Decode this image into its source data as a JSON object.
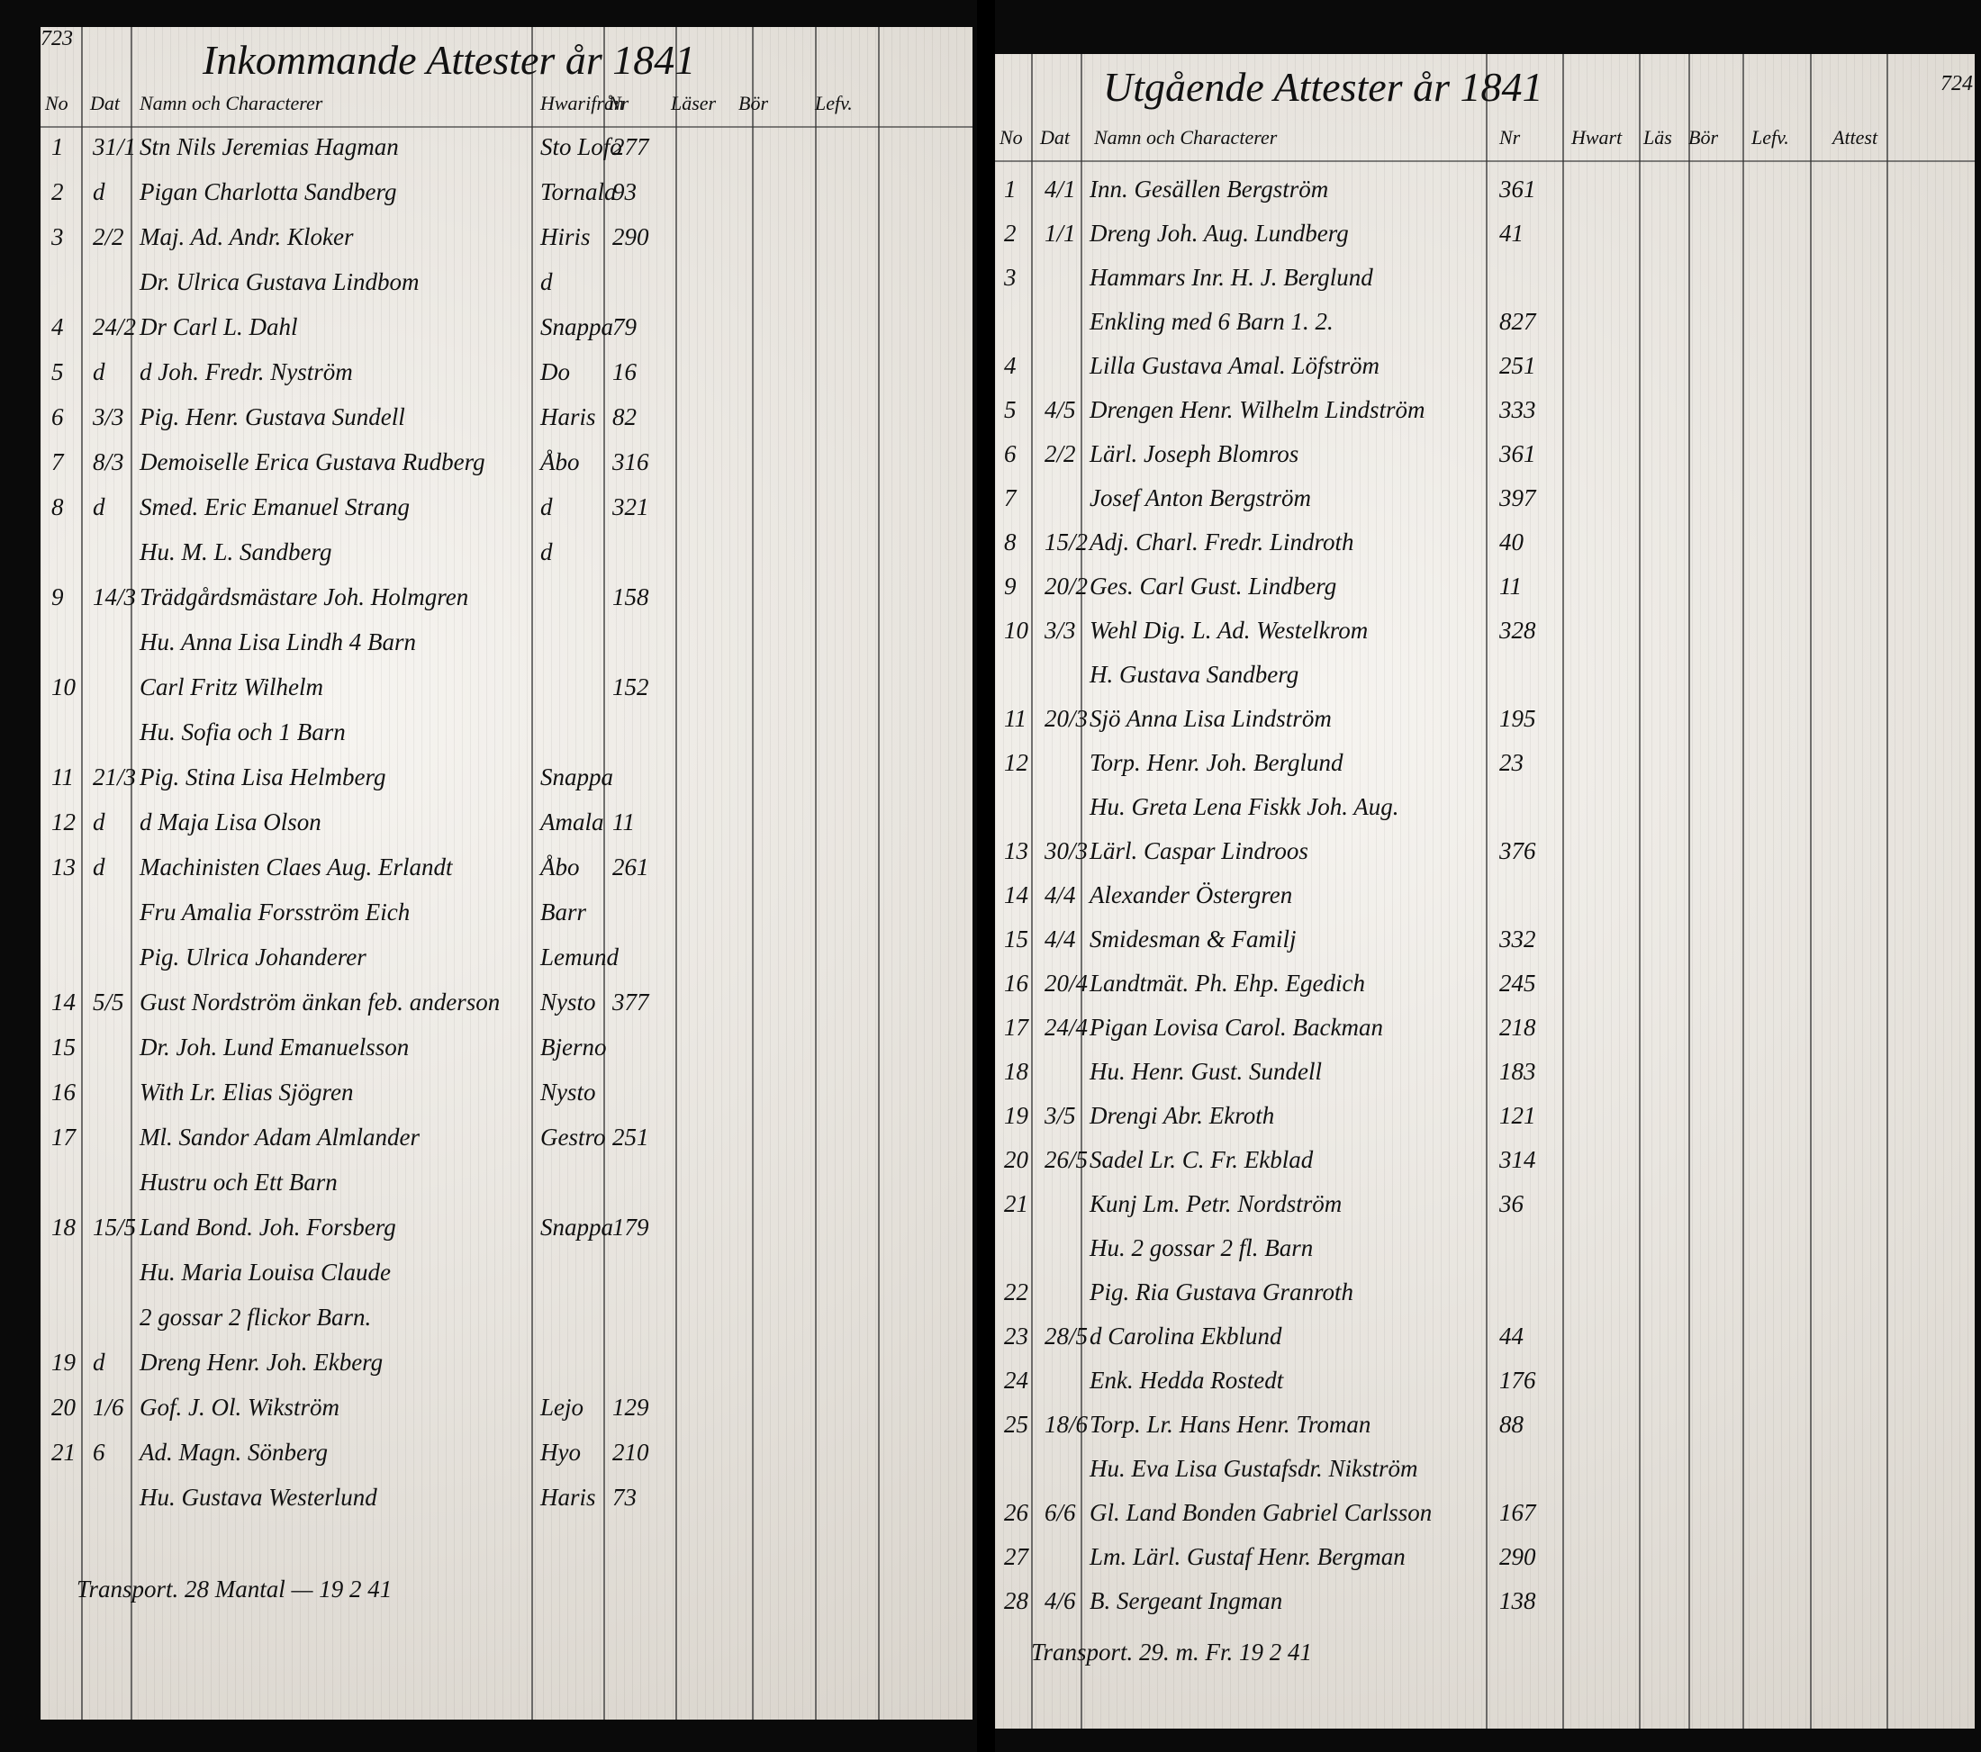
{
  "pages": [
    {
      "page_number": "723",
      "title": "Inkommande Attester år 1841",
      "headers": [
        "No",
        "Dat",
        "Namn och Characterer",
        "Hwarifrån",
        "Nr",
        "Läser",
        "Bör",
        "Lefv."
      ],
      "rows": [
        {
          "no": "1",
          "date": "31/1",
          "name": "Stn Nils Jeremias Hagman",
          "from": "Sto Lofo",
          "nr": "277"
        },
        {
          "no": "2",
          "date": "d",
          "name": "Pigan Charlotta Sandberg",
          "from": "Tornala",
          "nr": "93"
        },
        {
          "no": "3",
          "date": "2/2",
          "name": "Maj. Ad. Andr. Kloker",
          "from": "Hiris",
          "nr": "290"
        },
        {
          "name": "Dr. Ulrica Gustava Lindbom",
          "from": "d"
        },
        {
          "no": "4",
          "date": "24/2",
          "name": "Dr Carl L. Dahl",
          "from": "Snappa",
          "nr": "79"
        },
        {
          "no": "5",
          "date": "d",
          "name": "d Joh. Fredr. Nyström",
          "from": "Do",
          "nr": "16"
        },
        {
          "no": "6",
          "date": "3/3",
          "name": "Pig. Henr. Gustava Sundell",
          "from": "Haris",
          "nr": "82"
        },
        {
          "no": "7",
          "date": "8/3",
          "name": "Demoiselle Erica Gustava Rudberg",
          "from": "Åbo",
          "nr": "316"
        },
        {
          "no": "8",
          "date": "d",
          "name": "Smed. Eric Emanuel Strang",
          "from": "d",
          "nr": "321"
        },
        {
          "name": "Hu. M. L. Sandberg",
          "from": "d"
        },
        {
          "no": "9",
          "date": "14/3",
          "name": "Trädgårdsmästare Joh. Holmgren",
          "nr": "158"
        },
        {
          "name": "Hu. Anna Lisa Lindh 4 Barn"
        },
        {
          "no": "10",
          "name": "Carl Fritz Wilhelm",
          "nr": "152"
        },
        {
          "name": "Hu. Sofia och 1 Barn"
        },
        {
          "no": "11",
          "date": "21/3",
          "name": "Pig. Stina Lisa Helmberg",
          "from": "Snappa"
        },
        {
          "no": "12",
          "date": "d",
          "name": "d Maja Lisa Olson",
          "from": "Amala",
          "nr": "11"
        },
        {
          "no": "13",
          "date": "d",
          "name": "Machinisten Claes Aug. Erlandt",
          "from": "Åbo",
          "nr": "261"
        },
        {
          "name": "Fru Amalia Forsström Eich",
          "from": "Barr"
        },
        {
          "name": "Pig. Ulrica Johanderer",
          "from": "Lemund"
        },
        {
          "no": "14",
          "date": "5/5",
          "name": "Gust Nordström änkan feb. anderson",
          "from": "Nysto",
          "nr": "377"
        },
        {
          "no": "15",
          "name": "Dr. Joh. Lund Emanuelsson",
          "from": "Bjerno"
        },
        {
          "no": "16",
          "name": "With Lr. Elias Sjögren",
          "from": "Nysto"
        },
        {
          "no": "17",
          "name": "Ml. Sandor Adam Almlander",
          "from": "Gestro",
          "nr": "251"
        },
        {
          "name": "Hustru och Ett Barn"
        },
        {
          "no": "18",
          "date": "15/5",
          "name": "Land Bond. Joh. Forsberg",
          "from": "Snappa",
          "nr": "179"
        },
        {
          "name": "Hu. Maria Louisa Claude"
        },
        {
          "name": "2 gossar 2 flickor Barn."
        },
        {
          "no": "19",
          "date": "d",
          "name": "Dreng Henr. Joh. Ekberg"
        },
        {
          "no": "20",
          "date": "1/6",
          "name": "Gof. J. Ol. Wikström",
          "from": "Lejo",
          "nr": "129"
        },
        {
          "no": "21",
          "date": "6",
          "name": "Ad. Magn. Sönberg",
          "from": "Hyo",
          "nr": "210"
        },
        {
          "name": "Hu. Gustava Westerlund",
          "from": "Haris",
          "nr": "73"
        }
      ],
      "footer": "Transport. 28 Mantal — 19 2 41"
    },
    {
      "page_number": "724",
      "title": "Utgående Attester år 1841",
      "headers": [
        "No",
        "Dat",
        "Namn och Characterer",
        "Nr",
        "Hwart",
        "Läs",
        "Bör",
        "Lefv.",
        "Attest"
      ],
      "rows": [
        {
          "no": "1",
          "date": "4/1",
          "name": "Inn. Gesällen Bergström",
          "nr": "361"
        },
        {
          "no": "2",
          "date": "1/1",
          "name": "Dreng Joh. Aug. Lundberg",
          "nr": "41"
        },
        {
          "no": "3",
          "name": "Hammars Inr. H. J. Berglund"
        },
        {
          "name": "Enkling med 6 Barn 1. 2.",
          "nr": "827"
        },
        {
          "no": "4",
          "name": "Lilla Gustava Amal. Löfström",
          "nr": "251"
        },
        {
          "no": "5",
          "date": "4/5",
          "name": "Drengen Henr. Wilhelm Lindström",
          "nr": "333"
        },
        {
          "no": "6",
          "date": "2/2",
          "name": "Lärl. Joseph Blomros",
          "nr": "361"
        },
        {
          "no": "7",
          "name": "Josef Anton Bergström",
          "nr": "397"
        },
        {
          "no": "8",
          "date": "15/2",
          "name": "Adj. Charl. Fredr. Lindroth",
          "nr": "40"
        },
        {
          "no": "9",
          "date": "20/2",
          "name": "Ges. Carl Gust. Lindberg",
          "nr": "11"
        },
        {
          "no": "10",
          "date": "3/3",
          "name": "Wehl Dig. L. Ad. Westelkrom",
          "nr": "328"
        },
        {
          "name": "H. Gustava Sandberg"
        },
        {
          "no": "11",
          "date": "20/3",
          "name": "Sjö Anna Lisa Lindström",
          "nr": "195"
        },
        {
          "no": "12",
          "name": "Torp. Henr. Joh. Berglund",
          "nr": "23"
        },
        {
          "name": "Hu. Greta Lena Fiskk Joh. Aug."
        },
        {
          "no": "13",
          "date": "30/3",
          "name": "Lärl. Caspar Lindroos",
          "nr": "376"
        },
        {
          "no": "14",
          "date": "4/4",
          "name": "Alexander Östergren"
        },
        {
          "no": "15",
          "date": "4/4",
          "name": "Smidesman & Familj",
          "nr": "332"
        },
        {
          "no": "16",
          "date": "20/4",
          "name": "Landtmät. Ph. Ehp. Egedich",
          "nr": "245"
        },
        {
          "no": "17",
          "date": "24/4",
          "name": "Pigan Lovisa Carol. Backman",
          "nr": "218"
        },
        {
          "no": "18",
          "name": "Hu. Henr. Gust. Sundell",
          "nr": "183"
        },
        {
          "no": "19",
          "date": "3/5",
          "name": "Drengi Abr. Ekroth",
          "nr": "121"
        },
        {
          "no": "20",
          "date": "26/5",
          "name": "Sadel Lr. C. Fr. Ekblad",
          "nr": "314"
        },
        {
          "no": "21",
          "name": "Kunj Lm. Petr. Nordström",
          "nr": "36"
        },
        {
          "name": "Hu. 2 gossar 2 fl. Barn"
        },
        {
          "no": "22",
          "name": "Pig. Ria Gustava Granroth"
        },
        {
          "no": "23",
          "date": "28/5",
          "name": "d Carolina Ekblund",
          "nr": "44"
        },
        {
          "no": "24",
          "name": "Enk. Hedda Rostedt",
          "nr": "176"
        },
        {
          "no": "25",
          "date": "18/6",
          "name": "Torp. Lr. Hans Henr. Troman",
          "nr": "88"
        },
        {
          "name": "Hu. Eva Lisa Gustafsdr. Nikström"
        },
        {
          "no": "26",
          "date": "6/6",
          "name": "Gl. Land Bonden Gabriel Carlsson",
          "nr": "167"
        },
        {
          "no": "27",
          "name": "Lm. Lärl. Gustaf Henr. Bergman",
          "nr": "290"
        },
        {
          "no": "28",
          "date": "4/6",
          "name": "B. Sergeant Ingman",
          "nr": "138"
        }
      ],
      "footer": "Transport. 29. m. Fr. 19 2 41"
    }
  ]
}
